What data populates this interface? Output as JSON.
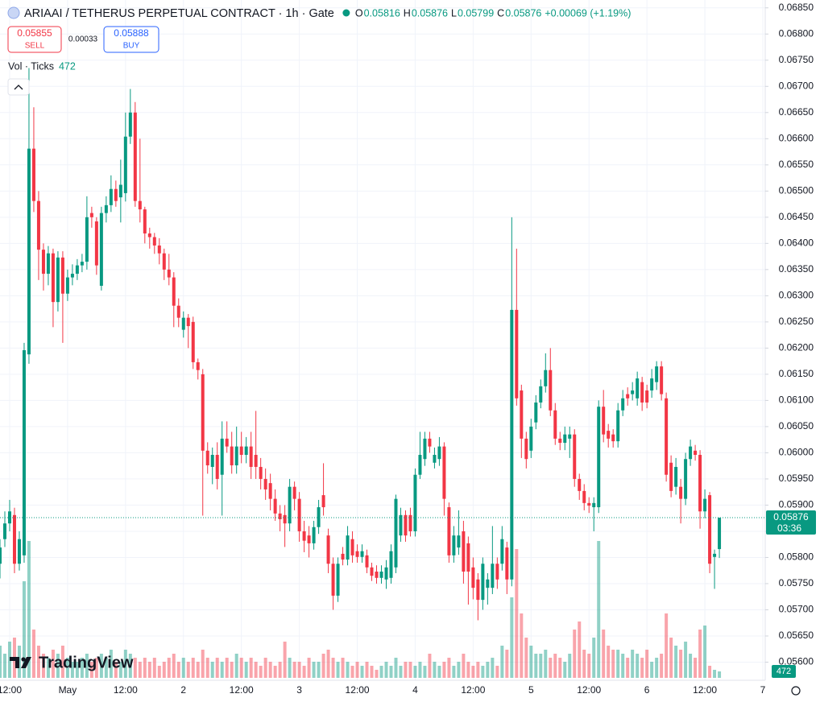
{
  "chart_data": {
    "type": "candlestick",
    "title": "ARIAAI / TETHERUS PERPETUAL CONTRACT · 1h · Gate",
    "ohlc": [
      {
        "label": "O",
        "value": "0.05816"
      },
      {
        "label": "H",
        "value": "0.05876"
      },
      {
        "label": "L",
        "value": "0.05799"
      },
      {
        "label": "C",
        "value": "0.05876"
      }
    ],
    "change": "+0.00069 (+1.19%)",
    "sell": {
      "price": "0.05855",
      "label": "SELL"
    },
    "spread": "0.00033",
    "buy": {
      "price": "0.05888",
      "label": "BUY"
    },
    "volume_title": "Vol · Ticks",
    "volume_last": "472",
    "last_price": "0.05876",
    "countdown": "03:36",
    "watermark": "TradingView",
    "up_color": "#089981",
    "down_color": "#f23645",
    "grid": true,
    "xlim": [
      0,
      158.5
    ],
    "xticks": [
      {
        "value": 2,
        "label": "12:00"
      },
      {
        "value": 14,
        "label": "May"
      },
      {
        "value": 26,
        "label": "12:00"
      },
      {
        "value": 38,
        "label": "2"
      },
      {
        "value": 50,
        "label": "12:00"
      },
      {
        "value": 62,
        "label": "3"
      },
      {
        "value": 74,
        "label": "12:00"
      },
      {
        "value": 86,
        "label": "4"
      },
      {
        "value": 98,
        "label": "12:00"
      },
      {
        "value": 110,
        "label": "5"
      },
      {
        "value": 122,
        "label": "12:00"
      },
      {
        "value": 134,
        "label": "6"
      },
      {
        "value": 146,
        "label": "12:00"
      },
      {
        "value": 158,
        "label": "7"
      }
    ],
    "ylim": [
      0.0557,
      0.06865
    ],
    "yticks": [
      {
        "value": 0.056,
        "label": "0.05600"
      },
      {
        "value": 0.0565,
        "label": "0.05650"
      },
      {
        "value": 0.057,
        "label": "0.05700"
      },
      {
        "value": 0.0575,
        "label": "0.05750"
      },
      {
        "value": 0.058,
        "label": "0.05800"
      },
      {
        "value": 0.0585,
        "label": "0.05850"
      },
      {
        "value": 0.059,
        "label": "0.05900"
      },
      {
        "value": 0.0595,
        "label": "0.05950"
      },
      {
        "value": 0.06,
        "label": "0.06000"
      },
      {
        "value": 0.0605,
        "label": "0.06050"
      },
      {
        "value": 0.061,
        "label": "0.06100"
      },
      {
        "value": 0.0615,
        "label": "0.06150"
      },
      {
        "value": 0.062,
        "label": "0.06200"
      },
      {
        "value": 0.0625,
        "label": "0.06250"
      },
      {
        "value": 0.063,
        "label": "0.06300"
      },
      {
        "value": 0.0635,
        "label": "0.06350"
      },
      {
        "value": 0.064,
        "label": "0.06400"
      },
      {
        "value": 0.0645,
        "label": "0.06450"
      },
      {
        "value": 0.065,
        "label": "0.06500"
      },
      {
        "value": 0.0655,
        "label": "0.06550"
      },
      {
        "value": 0.066,
        "label": "0.06600"
      },
      {
        "value": 0.0665,
        "label": "0.06650"
      },
      {
        "value": 0.067,
        "label": "0.06700"
      },
      {
        "value": 0.0675,
        "label": "0.06750"
      },
      {
        "value": 0.068,
        "label": "0.06800"
      },
      {
        "value": 0.0685,
        "label": "0.06850"
      }
    ],
    "open": [
      0.05788,
      0.05835,
      0.05865,
      0.05881,
      0.05788,
      0.05804,
      0.06188,
      0.06581,
      0.06481,
      0.06388,
      0.06342,
      0.06381,
      0.06288,
      0.06373,
      0.06304,
      0.06335,
      0.06342,
      0.06358,
      0.06365,
      0.06458,
      0.06442,
      0.06319,
      0.06458,
      0.06473,
      0.06504,
      0.06488,
      0.06496,
      0.06604,
      0.0665,
      0.06481,
      0.06465,
      0.06419,
      0.06412,
      0.06396,
      0.06381,
      0.0635,
      0.06335,
      0.06281,
      0.06235,
      0.06258,
      0.0625,
      0.06173,
      0.0615,
      0.06004,
      0.05973,
      0.05996,
      0.05958,
      0.06027,
      0.06012,
      0.05976,
      0.06012,
      0.05996,
      0.06012,
      0.05996,
      0.05973,
      0.0595,
      0.05942,
      0.05912,
      0.05884,
      0.05881,
      0.05865,
      0.05935,
      0.05912,
      0.0585,
      0.05842,
      0.05827,
      0.05858,
      0.05919,
      0.05842,
      0.05788,
      0.05727,
      0.05807,
      0.05796,
      0.05835,
      0.05812,
      0.05801,
      0.05804,
      0.05781,
      0.05773,
      0.05761,
      0.05758,
      0.05761,
      0.05781,
      0.05842,
      0.05881,
      0.05881,
      0.0585,
      0.05958,
      0.05988,
      0.06027,
      0.05981,
      0.05988,
      0.06012,
      0.05896,
      0.05804,
      0.05819,
      0.0585,
      0.05827,
      0.05781,
      0.05758,
      0.05719,
      0.05742,
      0.05742,
      0.05788,
      0.05788,
      0.05819,
      0.05758,
      0.06273,
      0.06119,
      0.06027,
      0.06004,
      0.06058,
      0.06096,
      0.06127,
      0.06158,
      0.06081,
      0.06027,
      0.06019,
      0.06027,
      0.06035,
      0.0595,
      0.05927,
      0.05904,
      0.05896,
      0.05896,
      0.06088,
      0.06042,
      0.06035,
      0.06022,
      0.06081,
      0.06112,
      0.06112,
      0.06104,
      0.06135,
      0.06119,
      0.06119,
      0.06135,
      0.06165,
      0.06104,
      0.05981,
      0.05935,
      0.05935,
      0.05912,
      0.05988,
      0.06004,
      0.05996,
      0.05888,
      0.05919,
      0.05801,
      0.05816
    ],
    "high": [
      0.05835,
      0.05888,
      0.0591,
      0.05895,
      0.0585,
      0.0621,
      0.06735,
      0.0666,
      0.065,
      0.064,
      0.06395,
      0.0639,
      0.06385,
      0.06385,
      0.0635,
      0.0636,
      0.0637,
      0.0638,
      0.0649,
      0.0647,
      0.0645,
      0.0647,
      0.0649,
      0.0653,
      0.0652,
      0.0656,
      0.0665,
      0.06695,
      0.0667,
      0.066,
      0.0647,
      0.0643,
      0.0642,
      0.0641,
      0.0639,
      0.0638,
      0.06345,
      0.06295,
      0.0627,
      0.06265,
      0.0626,
      0.0618,
      0.0616,
      0.0602,
      0.0601,
      0.0602,
      0.0606,
      0.0606,
      0.0604,
      0.0605,
      0.0604,
      0.0603,
      0.0604,
      0.0608,
      0.0599,
      0.0597,
      0.0596,
      0.0593,
      0.059,
      0.059,
      0.0595,
      0.05945,
      0.05925,
      0.0587,
      0.0586,
      0.0587,
      0.0591,
      0.0598,
      0.05855,
      0.058,
      0.058,
      0.0582,
      0.0586,
      0.0585,
      0.05825,
      0.05825,
      0.05815,
      0.0579,
      0.05785,
      0.05785,
      0.05795,
      0.05825,
      0.0592,
      0.05895,
      0.0589,
      0.05895,
      0.0597,
      0.0604,
      0.0604,
      0.0604,
      0.0601,
      0.0603,
      0.0602,
      0.05905,
      0.0586,
      0.0589,
      0.0587,
      0.0584,
      0.058,
      0.0577,
      0.058,
      0.0577,
      0.0586,
      0.058,
      0.0586,
      0.0583,
      0.0645,
      0.0639,
      0.0613,
      0.0604,
      0.06065,
      0.0611,
      0.0614,
      0.0619,
      0.062,
      0.06095,
      0.0604,
      0.0605,
      0.0605,
      0.06045,
      0.0596,
      0.0594,
      0.05915,
      0.05915,
      0.061,
      0.0612,
      0.06055,
      0.06045,
      0.06095,
      0.0612,
      0.06125,
      0.06135,
      0.06155,
      0.06145,
      0.0613,
      0.0616,
      0.06175,
      0.06175,
      0.06115,
      0.05995,
      0.0599,
      0.0595,
      0.06,
      0.06025,
      0.06015,
      0.06005,
      0.0593,
      0.05925,
      0.05815,
      0.05876
    ],
    "low": [
      0.0576,
      0.0582,
      0.0585,
      0.0577,
      0.05775,
      0.0579,
      0.0617,
      0.0646,
      0.0633,
      0.0631,
      0.0632,
      0.0624,
      0.0627,
      0.0621,
      0.0629,
      0.0632,
      0.0633,
      0.06345,
      0.0635,
      0.0643,
      0.0634,
      0.0631,
      0.0644,
      0.0646,
      0.0647,
      0.0644,
      0.0648,
      0.0659,
      0.0647,
      0.0644,
      0.064,
      0.0639,
      0.0638,
      0.0636,
      0.0633,
      0.0632,
      0.0624,
      0.0624,
      0.0622,
      0.062,
      0.0616,
      0.0614,
      0.0588,
      0.0596,
      0.0594,
      0.0593,
      0.0588,
      0.06,
      0.0596,
      0.0596,
      0.0598,
      0.0598,
      0.0595,
      0.0595,
      0.0593,
      0.0591,
      0.0589,
      0.0587,
      0.0585,
      0.0582,
      0.0585,
      0.0589,
      0.0583,
      0.0581,
      0.058,
      0.05815,
      0.05845,
      0.0588,
      0.0577,
      0.057,
      0.05715,
      0.05785,
      0.05785,
      0.0579,
      0.0579,
      0.0579,
      0.0577,
      0.05755,
      0.0575,
      0.0575,
      0.0574,
      0.0575,
      0.0577,
      0.0583,
      0.0583,
      0.0584,
      0.0584,
      0.0595,
      0.05975,
      0.06,
      0.0597,
      0.05975,
      0.0588,
      0.0579,
      0.0579,
      0.05805,
      0.0575,
      0.0571,
      0.0572,
      0.0568,
      0.057,
      0.0571,
      0.0573,
      0.0574,
      0.05775,
      0.0573,
      0.05745,
      0.0609,
      0.0599,
      0.0597,
      0.0599,
      0.06045,
      0.06085,
      0.06115,
      0.0607,
      0.06015,
      0.06005,
      0.06005,
      0.0599,
      0.05935,
      0.0591,
      0.0589,
      0.05885,
      0.0585,
      0.05885,
      0.0602,
      0.0601,
      0.0601,
      0.0601,
      0.0607,
      0.0609,
      0.061,
      0.0609,
      0.0608,
      0.06085,
      0.06105,
      0.0612,
      0.061,
      0.05945,
      0.05915,
      0.0592,
      0.05865,
      0.059,
      0.05975,
      0.05985,
      0.05855,
      0.05875,
      0.0577,
      0.0574,
      0.05799
    ],
    "close": [
      0.05819,
      0.05865,
      0.05888,
      0.05788,
      0.05835,
      0.06196,
      0.06581,
      0.06481,
      0.06388,
      0.06342,
      0.06381,
      0.06288,
      0.06373,
      0.06304,
      0.06335,
      0.06342,
      0.06358,
      0.06365,
      0.0645,
      0.0645,
      0.06358,
      0.06458,
      0.06473,
      0.06504,
      0.06481,
      0.06512,
      0.06604,
      0.0665,
      0.06481,
      0.06465,
      0.06419,
      0.06412,
      0.06396,
      0.06381,
      0.0635,
      0.06335,
      0.06281,
      0.06258,
      0.06258,
      0.06242,
      0.06173,
      0.06158,
      0.06004,
      0.05976,
      0.05996,
      0.0595,
      0.06027,
      0.06012,
      0.05976,
      0.06012,
      0.05996,
      0.06012,
      0.05973,
      0.05973,
      0.0595,
      0.0593,
      0.05912,
      0.05884,
      0.05873,
      0.05865,
      0.05935,
      0.05912,
      0.0585,
      0.05832,
      0.05827,
      0.05858,
      0.05896,
      0.05896,
      0.05788,
      0.05727,
      0.05788,
      0.05796,
      0.05842,
      0.05804,
      0.05801,
      0.05812,
      0.05781,
      0.05765,
      0.05761,
      0.05773,
      0.05781,
      0.05812,
      0.05912,
      0.05881,
      0.05842,
      0.0585,
      0.05958,
      0.05996,
      0.06027,
      0.06012,
      0.05996,
      0.06012,
      0.05912,
      0.05804,
      0.05842,
      0.05842,
      0.05773,
      0.05773,
      0.05742,
      0.05719,
      0.05788,
      0.05758,
      0.05788,
      0.05758,
      0.05835,
      0.05758,
      0.06273,
      0.06104,
      0.06027,
      0.05988,
      0.0605,
      0.06096,
      0.06127,
      0.06158,
      0.06081,
      0.06027,
      0.06019,
      0.06035,
      0.06035,
      0.0595,
      0.05927,
      0.05904,
      0.05899,
      0.05904,
      0.06088,
      0.06035,
      0.06027,
      0.06022,
      0.06081,
      0.06104,
      0.06104,
      0.06119,
      0.06142,
      0.06096,
      0.06096,
      0.06142,
      0.06165,
      0.06112,
      0.05958,
      0.05927,
      0.05973,
      0.05912,
      0.05988,
      0.06012,
      0.05996,
      0.05888,
      0.05912,
      0.05788,
      0.05807,
      0.05876
    ],
    "volume": [
      2360,
      1770,
      2655,
      2950,
      2360,
      7080,
      10030,
      3540,
      2360,
      1770,
      1475,
      2065,
      1770,
      2360,
      1475,
      1180,
      1180,
      1475,
      1770,
      1180,
      1475,
      1770,
      1475,
      2065,
      1180,
      1180,
      2065,
      1770,
      1475,
      1180,
      1475,
      1180,
      1475,
      885,
      1180,
      1475,
      1770,
      1180,
      1475,
      1180,
      1475,
      1180,
      2065,
      1475,
      1180,
      1475,
      1180,
      1475,
      1180,
      1770,
      1475,
      1180,
      1475,
      1180,
      885,
      1475,
      1180,
      885,
      1180,
      2655,
      1475,
      1180,
      1180,
      885,
      1475,
      1180,
      1180,
      1770,
      2065,
      1475,
      1180,
      1475,
      1180,
      885,
      1180,
      885,
      1180,
      885,
      590,
      885,
      1180,
      885,
      1475,
      885,
      1180,
      1180,
      885,
      1180,
      885,
      1770,
      1180,
      885,
      1180,
      1475,
      885,
      1180,
      1770,
      1180,
      885,
      1180,
      885,
      1180,
      1475,
      885,
      2360,
      2065,
      5900,
      9440,
      4720,
      2950,
      2360,
      1770,
      1770,
      2065,
      1475,
      1770,
      1475,
      1180,
      1770,
      3540,
      4130,
      2065,
      1770,
      2950,
      10030,
      3540,
      2360,
      2065,
      2065,
      1770,
      1475,
      2065,
      1770,
      1475,
      2065,
      1180,
      1475,
      1770,
      4720,
      2950,
      2360,
      2065,
      2655,
      1770,
      1475,
      3540,
      3835,
      885,
      590,
      472
    ]
  }
}
